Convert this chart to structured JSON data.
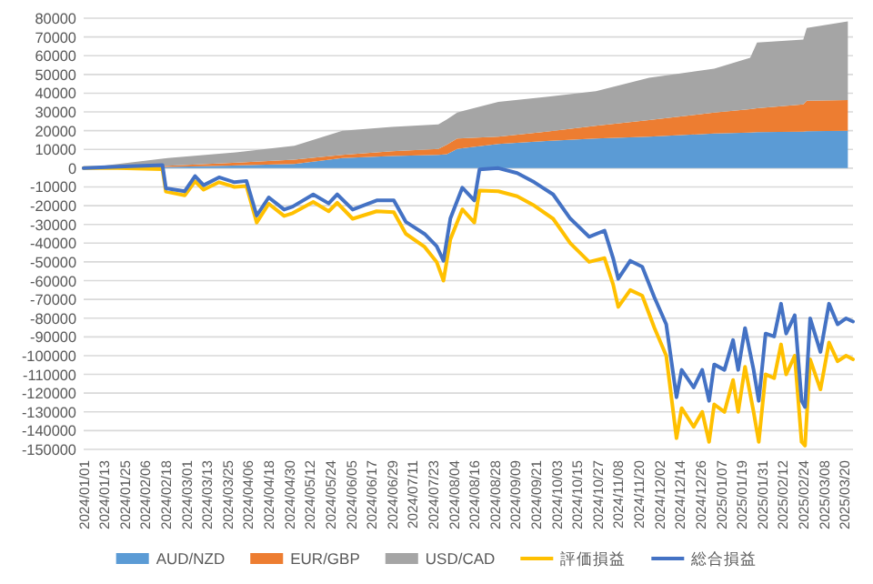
{
  "chart_data": {
    "type": "area",
    "stacked": true,
    "grid": "y",
    "legend": "bottom",
    "xlim": [
      "2024-01-01",
      "2025-03-25"
    ],
    "xticks": [
      {
        "value": "2024-01-01",
        "label": "2024/01/01"
      },
      {
        "value": "2024-01-13",
        "label": "2024/01/13"
      },
      {
        "value": "2024-01-25",
        "label": "2024/01/25"
      },
      {
        "value": "2024-02-06",
        "label": "2024/02/06"
      },
      {
        "value": "2024-02-18",
        "label": "2024/02/18"
      },
      {
        "value": "2024-03-01",
        "label": "2024/03/01"
      },
      {
        "value": "2024-03-13",
        "label": "2024/03/13"
      },
      {
        "value": "2024-03-25",
        "label": "2024/03/25"
      },
      {
        "value": "2024-04-06",
        "label": "2024/04/06"
      },
      {
        "value": "2024-04-18",
        "label": "2024/04/18"
      },
      {
        "value": "2024-04-30",
        "label": "2024/04/30"
      },
      {
        "value": "2024-05-12",
        "label": "2024/05/12"
      },
      {
        "value": "2024-05-24",
        "label": "2024/05/24"
      },
      {
        "value": "2024-06-05",
        "label": "2024/06/05"
      },
      {
        "value": "2024-06-17",
        "label": "2024/06/17"
      },
      {
        "value": "2024-06-29",
        "label": "2024/06/29"
      },
      {
        "value": "2024-07-11",
        "label": "2024/07/11"
      },
      {
        "value": "2024-07-23",
        "label": "2024/07/23"
      },
      {
        "value": "2024-08-04",
        "label": "2024/08/04"
      },
      {
        "value": "2024-08-16",
        "label": "2024/08/16"
      },
      {
        "value": "2024-08-28",
        "label": "2024/08/28"
      },
      {
        "value": "2024-09-09",
        "label": "2024/09/09"
      },
      {
        "value": "2024-09-21",
        "label": "2024/09/21"
      },
      {
        "value": "2024-10-03",
        "label": "2024/10/03"
      },
      {
        "value": "2024-10-15",
        "label": "2024/10/15"
      },
      {
        "value": "2024-10-27",
        "label": "2024/10/27"
      },
      {
        "value": "2024-11-08",
        "label": "2024/11/08"
      },
      {
        "value": "2024-11-20",
        "label": "2024/11/20"
      },
      {
        "value": "2024-12-02",
        "label": "2024/12/02"
      },
      {
        "value": "2024-12-14",
        "label": "2024/12/14"
      },
      {
        "value": "2024-12-26",
        "label": "2024/12/26"
      },
      {
        "value": "2025-01-07",
        "label": "2025/01/07"
      },
      {
        "value": "2025-01-19",
        "label": "2025/01/19"
      },
      {
        "value": "2025-01-31",
        "label": "2025/01/31"
      },
      {
        "value": "2025-02-12",
        "label": "2025/02/12"
      },
      {
        "value": "2025-02-24",
        "label": "2025/02/24"
      },
      {
        "value": "2025-03-08",
        "label": "2025/03/08"
      },
      {
        "value": "2025-03-20",
        "label": "2025/03/20"
      }
    ],
    "ylim": [
      -150000,
      80000
    ],
    "yticks": [
      -150000,
      -140000,
      -130000,
      -120000,
      -110000,
      -100000,
      -90000,
      -80000,
      -70000,
      -60000,
      -50000,
      -40000,
      -30000,
      -20000,
      -10000,
      0,
      10000,
      20000,
      30000,
      40000,
      50000,
      60000,
      70000,
      80000
    ],
    "x": [
      "2024-01-01",
      "2024-01-21",
      "2024-02-16",
      "2024-02-18",
      "2024-02-29",
      "2024-03-06",
      "2024-03-11",
      "2024-03-20",
      "2024-03-29",
      "2024-04-05",
      "2024-04-11",
      "2024-04-18",
      "2024-04-27",
      "2024-05-02",
      "2024-05-14",
      "2024-05-23",
      "2024-05-28",
      "2024-06-06",
      "2024-06-20",
      "2024-06-30",
      "2024-07-07",
      "2024-07-18",
      "2024-07-25",
      "2024-07-29",
      "2024-08-02",
      "2024-08-09",
      "2024-08-16",
      "2024-08-19",
      "2024-08-30",
      "2024-09-10",
      "2024-09-20",
      "2024-10-01",
      "2024-10-11",
      "2024-10-22",
      "2024-10-31",
      "2024-11-05",
      "2024-11-08",
      "2024-11-15",
      "2024-11-22",
      "2024-11-29",
      "2024-12-06",
      "2024-12-12",
      "2024-12-15",
      "2024-12-22",
      "2024-12-27",
      "2024-12-31",
      "2025-01-03",
      "2025-01-09",
      "2025-01-14",
      "2025-01-17",
      "2025-01-21",
      "2025-01-26",
      "2025-01-29",
      "2025-02-02",
      "2025-02-07",
      "2025-02-11",
      "2025-02-14",
      "2025-02-19",
      "2025-02-23",
      "2025-02-25",
      "2025-02-28",
      "2025-03-06",
      "2025-03-11",
      "2025-03-16",
      "2025-03-21",
      "2025-03-25"
    ],
    "series": [
      {
        "name": "AUD/NZD",
        "color": "#5b9bd5",
        "x": [
          "2024-01-01",
          "2024-02-19",
          "2024-03-31",
          "2024-05-03",
          "2024-05-31",
          "2024-06-29",
          "2024-07-26",
          "2024-07-31",
          "2024-08-06",
          "2024-08-30",
          "2024-09-27",
          "2024-10-26",
          "2024-11-26",
          "2025-01-03",
          "2025-01-24",
          "2025-01-28",
          "2025-02-24",
          "2025-02-26",
          "2025-03-22"
        ],
        "values": [
          0,
          700,
          1500,
          2200,
          5400,
          6500,
          7100,
          7500,
          10300,
          12900,
          14500,
          15800,
          16800,
          18500,
          19000,
          19200,
          19500,
          19700,
          20000
        ]
      },
      {
        "name": "EUR/GBP",
        "color": "#ed7d31",
        "x": [
          "2024-01-01",
          "2024-02-19",
          "2024-03-31",
          "2024-05-03",
          "2024-05-31",
          "2024-06-29",
          "2024-07-26",
          "2024-07-31",
          "2024-08-06",
          "2024-08-30",
          "2024-09-27",
          "2024-10-26",
          "2024-11-26",
          "2025-01-03",
          "2025-01-24",
          "2025-01-28",
          "2025-02-24",
          "2025-02-26",
          "2025-03-22"
        ],
        "values": [
          0,
          600,
          1500,
          2300,
          1700,
          2500,
          3200,
          5100,
          5500,
          3900,
          5000,
          6800,
          8800,
          11200,
          12500,
          12800,
          14500,
          16300,
          16300
        ]
      },
      {
        "name": "USD/CAD",
        "color": "#a5a5a5",
        "x": [
          "2024-01-01",
          "2024-02-19",
          "2024-03-31",
          "2024-05-03",
          "2024-05-31",
          "2024-06-29",
          "2024-07-26",
          "2024-07-31",
          "2024-08-06",
          "2024-08-30",
          "2024-09-27",
          "2024-10-26",
          "2024-11-26",
          "2025-01-03",
          "2025-01-24",
          "2025-01-28",
          "2025-02-24",
          "2025-02-26",
          "2025-03-22"
        ],
        "values": [
          0,
          4100,
          5500,
          7500,
          12900,
          13000,
          13000,
          13400,
          13900,
          18500,
          18500,
          18500,
          22600,
          23400,
          27400,
          35000,
          34600,
          38800,
          42000
        ]
      },
      {
        "name": "評価損益",
        "type": "line",
        "color": "#ffc000",
        "values": [
          0,
          0,
          -500,
          -12500,
          -14500,
          -7000,
          -11500,
          -7500,
          -10000,
          -9500,
          -29000,
          -19000,
          -25500,
          -24000,
          -18000,
          -23000,
          -18500,
          -27000,
          -23000,
          -23500,
          -35000,
          -42000,
          -50000,
          -60000,
          -38000,
          -22000,
          -29000,
          -12000,
          -12300,
          -15000,
          -20000,
          -27000,
          -40000,
          -50000,
          -48000,
          -62000,
          -74000,
          -65000,
          -68000,
          -85000,
          -100000,
          -144000,
          -128000,
          -138000,
          -130000,
          -146000,
          -126000,
          -130000,
          -113000,
          -130000,
          -106000,
          -130000,
          -146000,
          -110000,
          -112000,
          -94000,
          -110000,
          -100000,
          -146000,
          -148000,
          -102000,
          -118000,
          -93000,
          -103000,
          -100000,
          -102000
        ]
      },
      {
        "name": "総合損益",
        "type": "line",
        "color": "#4472c4",
        "values": [
          0,
          800,
          1600,
          -10700,
          -12300,
          -4200,
          -9100,
          -4900,
          -7500,
          -6800,
          -25300,
          -15600,
          -22100,
          -20500,
          -14000,
          -18800,
          -14000,
          -22100,
          -17200,
          -17200,
          -28600,
          -35100,
          -41600,
          -49400,
          -26900,
          -10400,
          -17200,
          -700,
          0,
          -2600,
          -7500,
          -14000,
          -26900,
          -36600,
          -33300,
          -48000,
          -59000,
          -49400,
          -52600,
          -68700,
          -83300,
          -122200,
          -107600,
          -117000,
          -107600,
          -124100,
          -104700,
          -107600,
          -91700,
          -107600,
          -85300,
          -107600,
          -124100,
          -88200,
          -89800,
          -72300,
          -88200,
          -78500,
          -124100,
          -127400,
          -80100,
          -98000,
          -72300,
          -83300,
          -80100,
          -81800
        ]
      }
    ]
  }
}
